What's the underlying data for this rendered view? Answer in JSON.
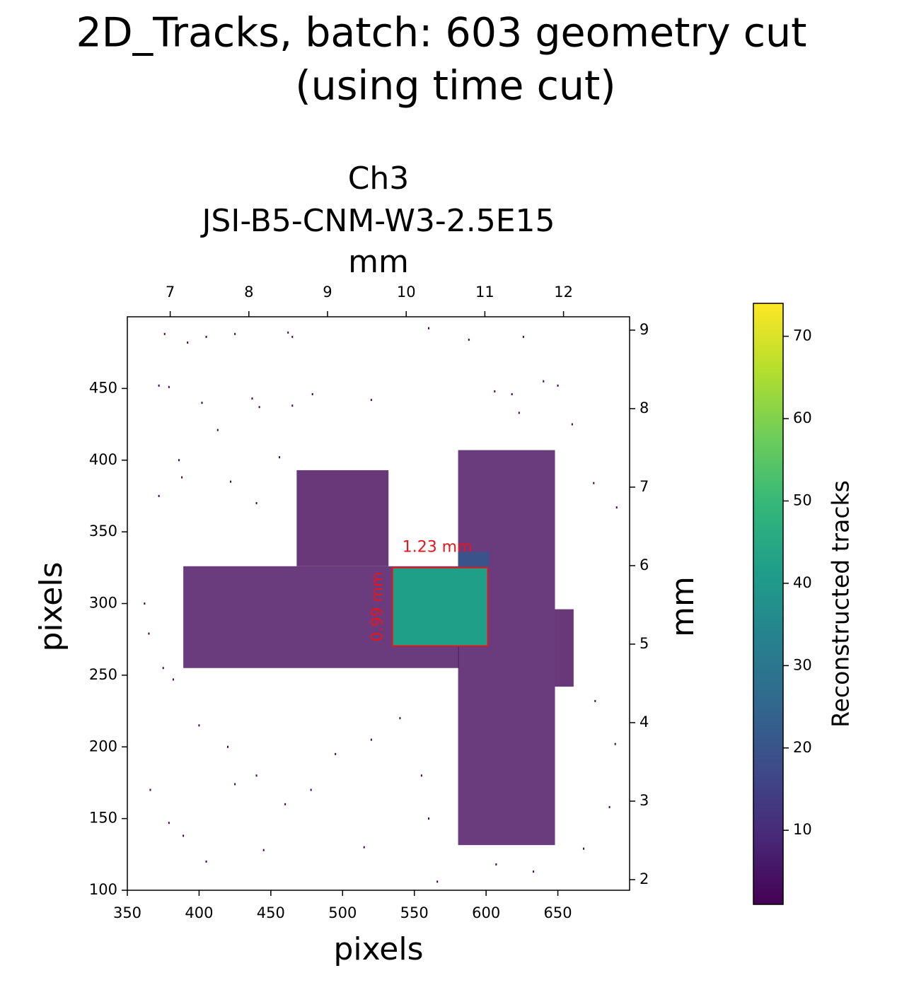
{
  "chart_data": {
    "type": "hist2d",
    "title": "2D_Tracks, batch: 603 geometry cut",
    "subtitle": "(using time cut)",
    "plot_title": [
      "Ch3",
      "JSI-B5-CNM-W3-2.5E15"
    ],
    "xlabel": "pixels",
    "ylabel": "pixels",
    "x2label": "mm",
    "y2label": "mm",
    "colorbar_label": "Reconstructed tracks",
    "colormap": "viridis",
    "xlim": [
      350,
      700
    ],
    "ylim": [
      100,
      500
    ],
    "xticks": [
      350,
      400,
      450,
      500,
      550,
      600,
      650
    ],
    "yticks": [
      100,
      150,
      200,
      250,
      300,
      350,
      400,
      450
    ],
    "x2lim": [
      6.455,
      12.84
    ],
    "x2ticks": [
      7,
      8,
      9,
      10,
      11,
      12
    ],
    "y2lim": [
      1.865,
      9.17
    ],
    "y2ticks": [
      2,
      3,
      4,
      5,
      6,
      7,
      8,
      9
    ],
    "clim": [
      1,
      74
    ],
    "cticks": [
      10,
      20,
      30,
      40,
      50,
      60,
      70
    ],
    "regions": [
      {
        "x": [
          389,
          581
        ],
        "y": [
          255,
          326
        ],
        "value": 3
      },
      {
        "x": [
          468,
          532
        ],
        "y": [
          326,
          393
        ],
        "value": 2
      },
      {
        "x": [
          580.5,
          648
        ],
        "y": [
          131.5,
          407
        ],
        "value": 3
      },
      {
        "x": [
          648,
          661
        ],
        "y": [
          242,
          296
        ],
        "value": 2
      },
      {
        "x": [
          580.5,
          602.2
        ],
        "y": [
          325,
          336
        ],
        "value": 20
      },
      {
        "x": [
          534.7,
          601.2
        ],
        "y": [
          270.4,
          325.1
        ],
        "value": 42
      }
    ],
    "points": [
      [
        376,
        488
      ],
      [
        392,
        482
      ],
      [
        405,
        486
      ],
      [
        425,
        488
      ],
      [
        462,
        489
      ],
      [
        465,
        486
      ],
      [
        560,
        492
      ],
      [
        588,
        484
      ],
      [
        626,
        486
      ],
      [
        372,
        452
      ],
      [
        379,
        451
      ],
      [
        402,
        440
      ],
      [
        437,
        443
      ],
      [
        442,
        437
      ],
      [
        465,
        438
      ],
      [
        479,
        446
      ],
      [
        520,
        442
      ],
      [
        606,
        448
      ],
      [
        618,
        446
      ],
      [
        640,
        455
      ],
      [
        650,
        452
      ],
      [
        660,
        425
      ],
      [
        413,
        421
      ],
      [
        386,
        400
      ],
      [
        372,
        375
      ],
      [
        388,
        388
      ],
      [
        422,
        385
      ],
      [
        440,
        370
      ],
      [
        456,
        402
      ],
      [
        623,
        433
      ],
      [
        675,
        384
      ],
      [
        691,
        367
      ],
      [
        362,
        300
      ],
      [
        365,
        279
      ],
      [
        375,
        255
      ],
      [
        382,
        247
      ],
      [
        400,
        215
      ],
      [
        420,
        200
      ],
      [
        440,
        180
      ],
      [
        460,
        160
      ],
      [
        478,
        170
      ],
      [
        495,
        195
      ],
      [
        520,
        205
      ],
      [
        540,
        220
      ],
      [
        555,
        180
      ],
      [
        560,
        150
      ],
      [
        515,
        130
      ],
      [
        566,
        106
      ],
      [
        607,
        118
      ],
      [
        668,
        129
      ],
      [
        633,
        113
      ],
      [
        686,
        158
      ],
      [
        690,
        202
      ],
      [
        676,
        232
      ],
      [
        366,
        170
      ],
      [
        379,
        147
      ],
      [
        389,
        138
      ],
      [
        405,
        120
      ],
      [
        425,
        174
      ],
      [
        445,
        128
      ]
    ],
    "cut_box": {
      "x": [
        534.7,
        601.2
      ],
      "y": [
        270.4,
        325.1
      ]
    },
    "cut_width_label": "1.23 mm",
    "cut_height_label": "0.99 mm",
    "cut_color": "#e8141c"
  }
}
